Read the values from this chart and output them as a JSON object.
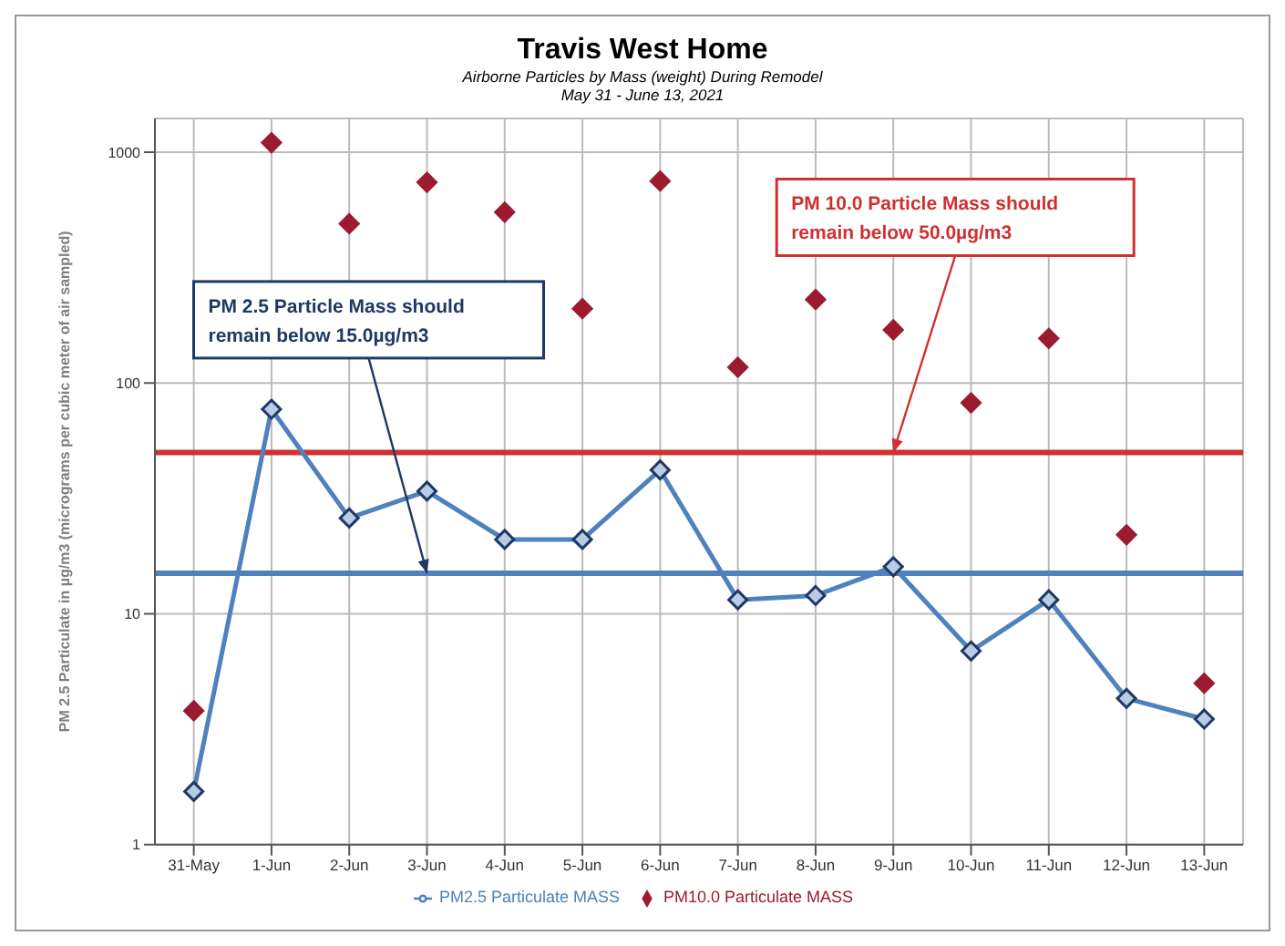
{
  "chart_data": {
    "type": "line",
    "title": "Travis West Home",
    "subtitle": "Airborne Particles by Mass (weight) During Remodel\nMay 31 - June 13, 2021",
    "ylabel": "PM 2.5 Particulate in µg/m3 (micrograms per cubic meter of air sampled)",
    "categories": [
      "31-May",
      "1-Jun",
      "2-Jun",
      "3-Jun",
      "4-Jun",
      "5-Jun",
      "6-Jun",
      "7-Jun",
      "8-Jun",
      "9-Jun",
      "10-Jun",
      "11-Jun",
      "12-Jun",
      "13-Jun"
    ],
    "series": [
      {
        "name": "PM2.5 Particulate MASS",
        "color": "#4f81bd",
        "values": [
          1.7,
          77,
          26,
          34,
          21,
          21,
          42,
          11.5,
          12,
          16,
          6.9,
          11.5,
          4.3,
          3.5
        ]
      },
      {
        "name": "PM10.0 Particulate MASS",
        "type": "scatter",
        "color": "#9b1b30",
        "values": [
          3.8,
          1100,
          490,
          740,
          550,
          210,
          750,
          117,
          230,
          170,
          82,
          156,
          22,
          5.0
        ]
      }
    ],
    "log": true,
    "ylim": [
      1,
      1400
    ],
    "yticks": [
      1,
      10,
      100,
      1000
    ],
    "grid": true,
    "legend": "bottom",
    "marker": "diamond",
    "ref_lines": [
      {
        "axis": "y",
        "value": 50,
        "color": "#d03030"
      },
      {
        "axis": "y",
        "value": 15,
        "color": "#4f81bd"
      }
    ],
    "annotations": [
      {
        "text": "PM 2.5 Particle Mass should remain below 15.0µg/m3",
        "x": "3-Jun",
        "y": 15
      },
      {
        "text": "PM 10.0 Particle Mass should remain below 50.0µg/m3",
        "x": "9-Jun",
        "y": 50
      }
    ]
  }
}
